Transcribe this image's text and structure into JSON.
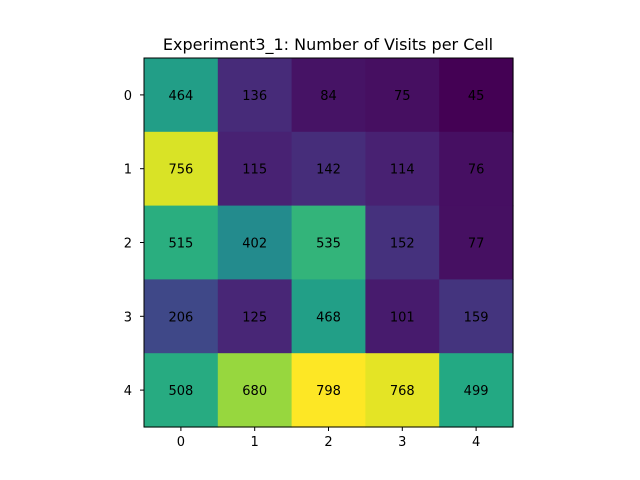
{
  "chart_data": {
    "type": "heatmap",
    "title": "Experiment3_1: Number of Visits per Cell",
    "xlabel": "",
    "ylabel": "",
    "x_ticks": [
      "0",
      "1",
      "2",
      "3",
      "4"
    ],
    "y_ticks": [
      "0",
      "1",
      "2",
      "3",
      "4"
    ],
    "values": [
      [
        464,
        136,
        84,
        75,
        45
      ],
      [
        756,
        115,
        142,
        114,
        76
      ],
      [
        515,
        402,
        535,
        152,
        77
      ],
      [
        206,
        125,
        468,
        101,
        159
      ],
      [
        508,
        680,
        798,
        768,
        499
      ]
    ],
    "colormap": "viridis",
    "value_range": [
      45,
      798
    ],
    "grid": false,
    "legend": "none"
  }
}
